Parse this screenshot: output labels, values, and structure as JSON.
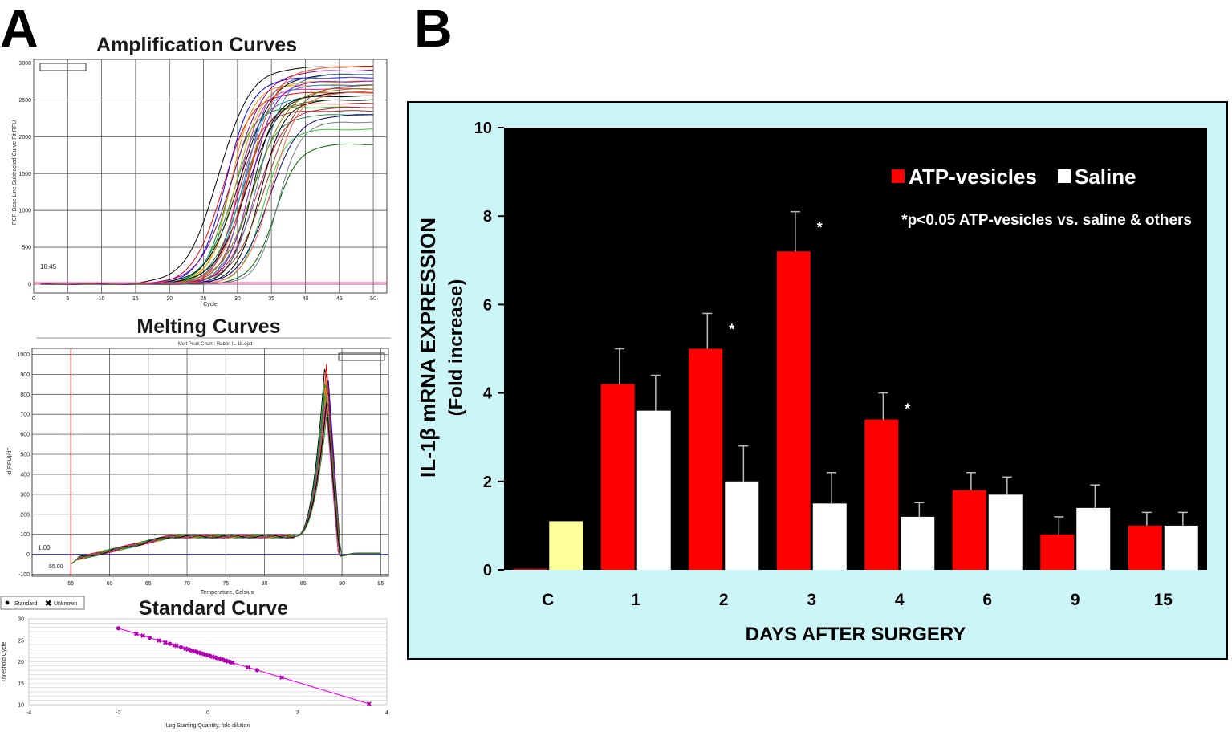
{
  "panel_labels": {
    "a": "A",
    "b": "B"
  },
  "colors": {
    "atp": "#ff0000",
    "saline": "#ffffff",
    "control": "#ffff99",
    "plot_bg": "#000000",
    "frame_bg": "#ccf5f8",
    "standard_curve_line": "#ff00ff",
    "standard_points": "#b000b0",
    "threshold_line": "#ff4da6",
    "melt_baseline": "#3333cc",
    "melt_cursor": "#ff0000"
  },
  "chart_data": [
    {
      "id": "amplification",
      "type": "line",
      "title": "Amplification Curves",
      "xlabel": "Cycle",
      "ylabel": "PCR Base Line Subtracted Curve Fit RFU",
      "xlim": [
        0,
        52
      ],
      "ylim": [
        -120,
        3050
      ],
      "xticks": [
        0,
        5,
        10,
        15,
        20,
        25,
        30,
        35,
        40,
        45,
        50
      ],
      "yticks": [
        0,
        500,
        1000,
        1500,
        2000,
        2500,
        3000
      ],
      "threshold_label": "18.45",
      "threshold_value": 18.45,
      "curve_family": {
        "description": "sigmoid amplification curves",
        "midpoints": [
          27.2,
          27.8,
          28.3,
          28.6,
          29.0,
          29.3,
          29.5,
          29.8,
          30.0,
          30.2,
          30.4,
          30.6,
          30.8,
          31.0,
          31.2,
          31.4,
          31.6,
          31.8,
          32.0,
          32.2,
          32.5,
          32.8,
          33.1,
          33.4,
          33.8,
          34.2,
          34.6,
          35.0,
          35.5,
          36.0
        ],
        "plateaus": [
          2950,
          2600,
          2800,
          2400,
          2700,
          2900,
          2550,
          2750,
          2350,
          2650,
          2850,
          2500,
          2700,
          2450,
          2800,
          2600,
          2950,
          2300,
          2750,
          2550,
          2650,
          2400,
          2850,
          2500,
          2100,
          2700,
          2300,
          2600,
          1900,
          2200
        ],
        "colors": [
          "#000000",
          "#ff0000",
          "#0000ff",
          "#00a000",
          "#ff8c00",
          "#8b008b",
          "#008b8b",
          "#d4a000",
          "#a52a2a",
          "#ff1493",
          "#000000",
          "#228b22",
          "#1e90ff",
          "#b22222",
          "#6a5acd",
          "#000000",
          "#ff4500",
          "#2e8b57",
          "#9400d3",
          "#000000",
          "#808000",
          "#dc143c",
          "#4682b4",
          "#000000",
          "#32cd32",
          "#8b4513",
          "#000080",
          "#ff6347",
          "#006400",
          "#708090"
        ]
      }
    },
    {
      "id": "melting",
      "type": "line",
      "title": "Melting Curves",
      "subtitle": "Melt Peak Chart : Rabbit IL-1b.opd",
      "xlabel": "Temperature, Celsius",
      "ylabel": "-d(RFU)/dT",
      "xlim": [
        50,
        96
      ],
      "ylim": [
        -110,
        1030
      ],
      "xticks": [
        55,
        60,
        65,
        70,
        75,
        80,
        85,
        90,
        95
      ],
      "yticks": [
        -100,
        0,
        100,
        200,
        300,
        400,
        500,
        600,
        700,
        800,
        900,
        1000
      ],
      "threshold_label": "1.00",
      "cursor_label": "55.00",
      "cursor_value": 55.0,
      "peak_temperature": 88.0,
      "peak_heights": [
        980,
        950,
        920,
        900,
        880,
        860,
        840,
        820,
        800,
        780,
        760,
        740
      ]
    },
    {
      "id": "standard",
      "type": "scatter",
      "title": "Standard Curve",
      "xlabel": "Log Starting Quantity, fold dilution",
      "ylabel": "Threshold Cycle",
      "xlim": [
        -4,
        4
      ],
      "ylim": [
        10,
        30
      ],
      "xticks": [
        -4,
        -2,
        0,
        2,
        4
      ],
      "yticks": [
        10,
        15,
        20,
        25,
        30
      ],
      "legend": [
        "Standard",
        "Unknown"
      ],
      "fit_line": {
        "x": [
          -2.0,
          3.6
        ],
        "y": [
          27.8,
          10.2
        ]
      },
      "points_x": [
        -2.0,
        -1.6,
        -1.45,
        -1.3,
        -1.1,
        -0.95,
        -0.85,
        -0.75,
        -0.7,
        -0.6,
        -0.5,
        -0.45,
        -0.4,
        -0.35,
        -0.3,
        -0.25,
        -0.2,
        -0.15,
        -0.1,
        -0.05,
        0.0,
        0.05,
        0.1,
        0.15,
        0.2,
        0.25,
        0.3,
        0.35,
        0.4,
        0.45,
        0.5,
        0.55,
        0.9,
        1.1,
        1.65,
        3.6
      ]
    },
    {
      "id": "il1b",
      "type": "bar",
      "title": "",
      "xlabel": "DAYS AFTER SURGERY",
      "ylabel": "IL-1β mRNA EXPRESSION",
      "ylabel2": "(Fold increase)",
      "ylim": [
        0,
        10
      ],
      "yticks": [
        0,
        2,
        4,
        6,
        8,
        10
      ],
      "categories": [
        "C",
        "1",
        "2",
        "3",
        "4",
        "6",
        "9",
        "15"
      ],
      "series": [
        {
          "name": "ATP-vesicles",
          "values": [
            0.02,
            4.2,
            5.0,
            7.2,
            3.4,
            1.8,
            0.8,
            1.0
          ],
          "errors": [
            0.0,
            0.8,
            0.8,
            0.9,
            0.6,
            0.4,
            0.4,
            0.3
          ]
        },
        {
          "name": "Saline",
          "values": [
            1.1,
            3.6,
            2.0,
            1.5,
            1.2,
            1.7,
            1.4,
            1.0
          ],
          "errors": [
            0.03,
            0.8,
            0.8,
            0.7,
            0.32,
            0.4,
            0.52,
            0.3
          ]
        }
      ],
      "significant": [
        false,
        false,
        true,
        true,
        true,
        false,
        false,
        false
      ],
      "significance_marker": "*",
      "annotation": "*p<0.05 ATP-vesicles vs. saline & others",
      "legend_position": "top-right"
    }
  ]
}
